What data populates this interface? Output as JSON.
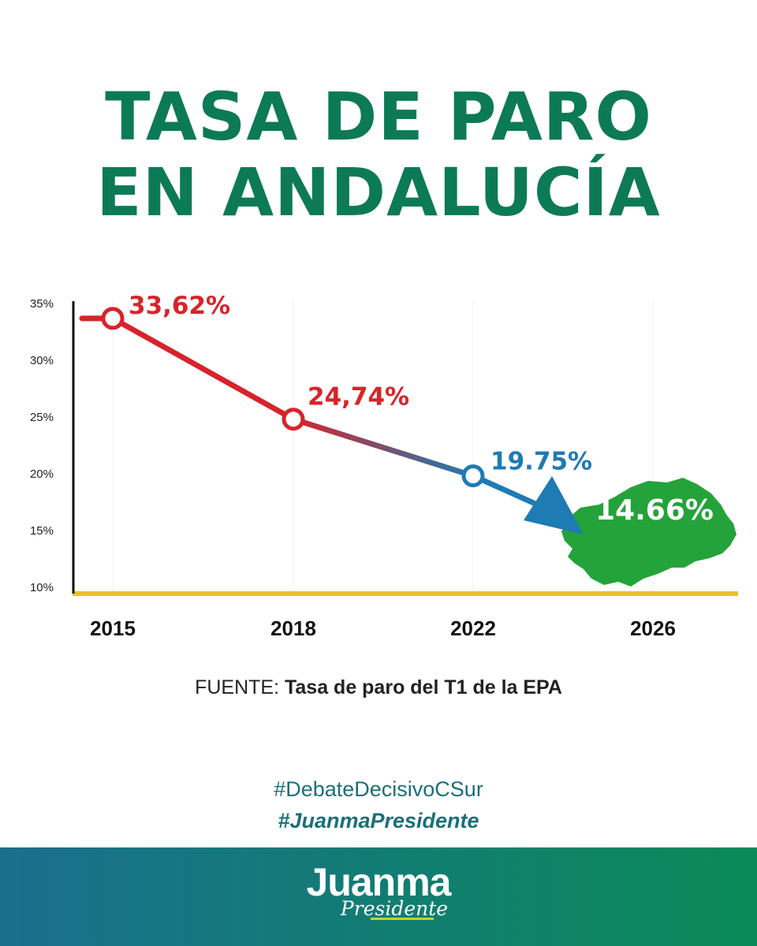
{
  "header": {
    "title_line1": "TASA DE PARO",
    "title_line2": "EN ANDALUCÍA"
  },
  "chart_data": {
    "type": "line",
    "title": "",
    "xlabel": "",
    "ylabel": "",
    "categories": [
      "2015",
      "2018",
      "2022",
      "2026"
    ],
    "y_ticks": [
      "35%",
      "30%",
      "25%",
      "20%",
      "15%",
      "10%"
    ],
    "ylim": [
      10,
      35
    ],
    "grid": false,
    "series": [
      {
        "values": [
          33.62,
          24.74,
          19.75,
          14.66
        ],
        "labels": [
          "33,62%",
          "24,74%",
          "19.75%",
          "14.66%"
        ]
      }
    ],
    "annotation": "14.66% projection shown over a map of Andalucía with an arrow"
  },
  "source": {
    "prefix": "FUENTE:",
    "text": "Tasa de paro del T1 de la EPA"
  },
  "hashtags": {
    "tag1": "#DebateDecisivoCSur",
    "tag2": "#JuanmaPresidente"
  },
  "brand": {
    "name": "Juanma",
    "subtitle": "Presidente"
  },
  "colors": {
    "title_green": "#0c7a55",
    "red": "#d7242b",
    "blue": "#1e7bb3",
    "map_green": "#24a33a",
    "axis_gold": "#e8c22c",
    "hashtag_teal": "#1b6f7a",
    "footer_start": "#1a6f8e",
    "footer_end": "#0a8a58",
    "brand_underline": "#c9d12a"
  }
}
